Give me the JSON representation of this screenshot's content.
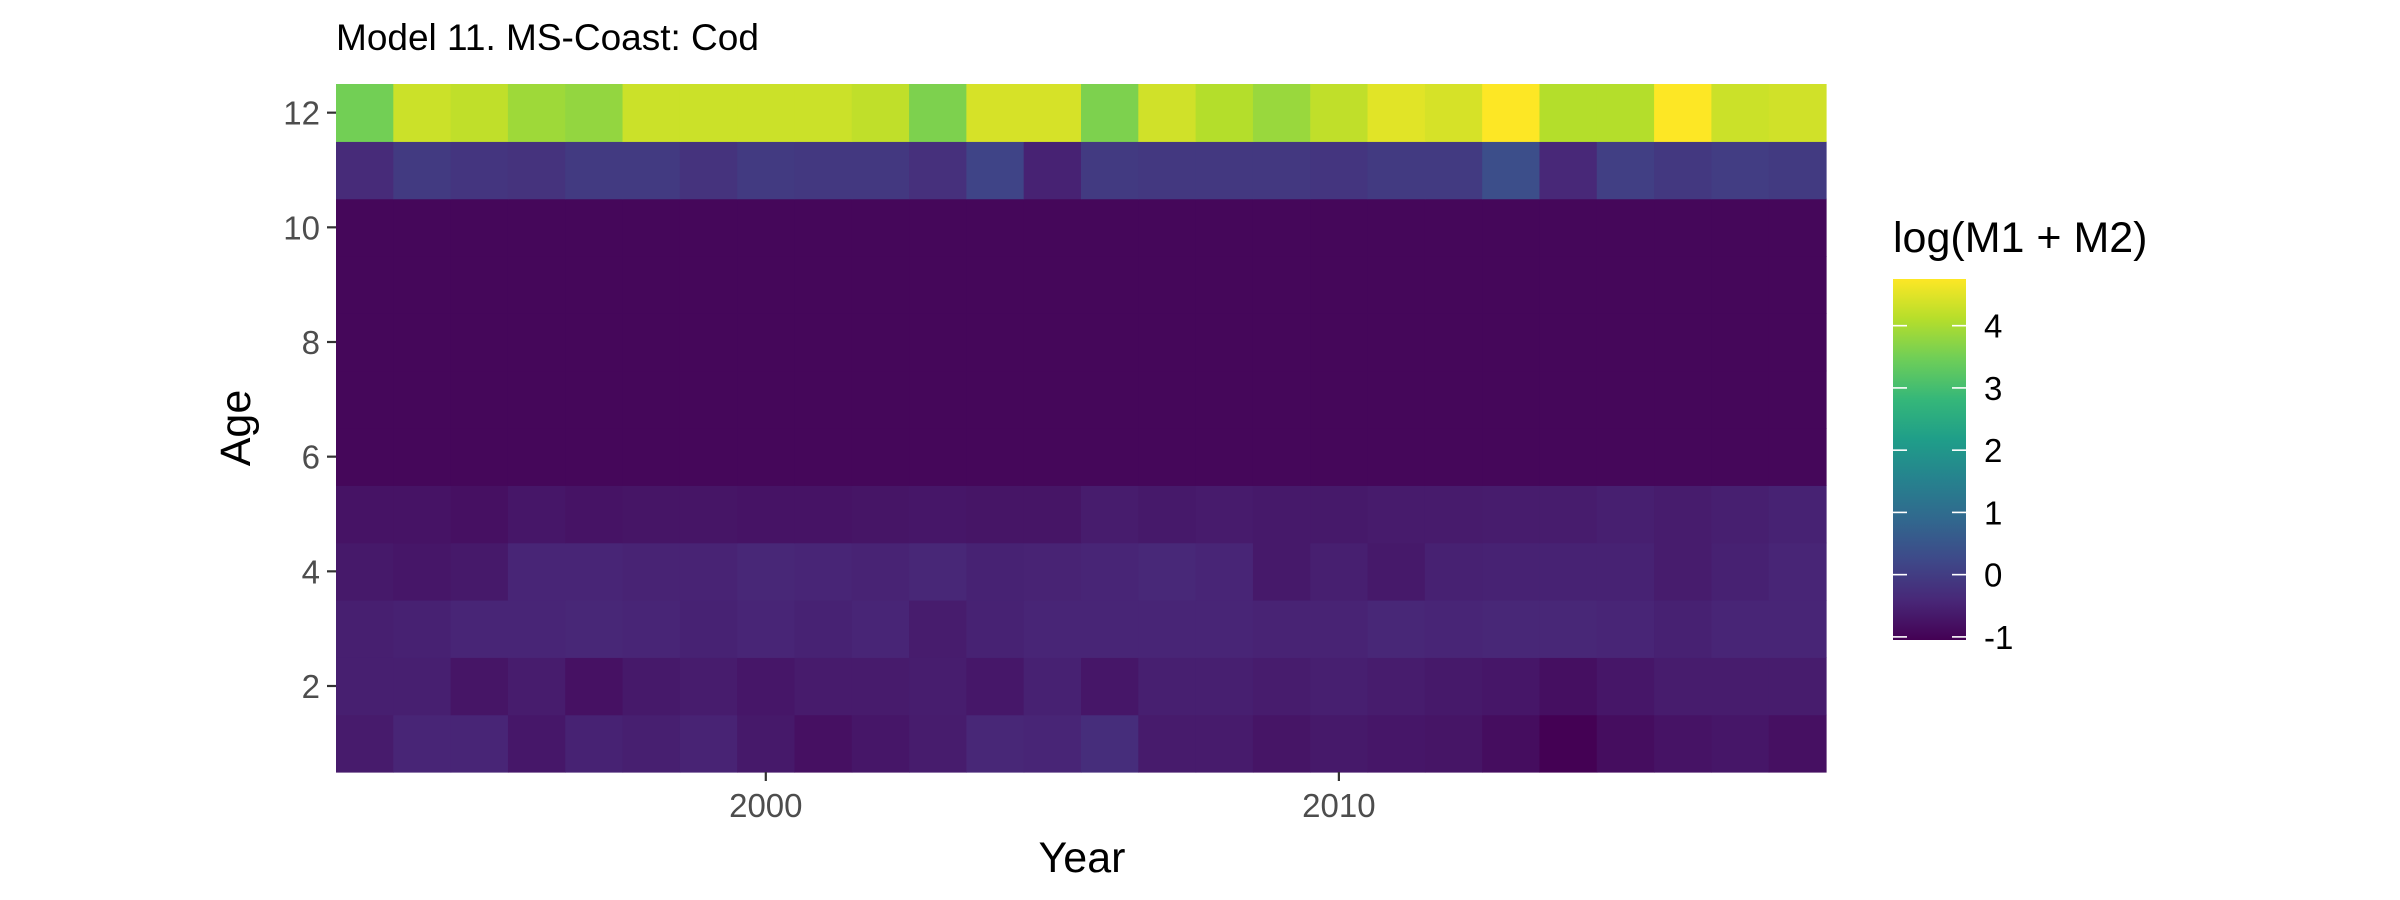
{
  "chart_data": {
    "type": "heatmap",
    "title": "Model 11. MS-Coast: Cod",
    "xlabel": "Year",
    "ylabel": "Age",
    "x": [
      1993,
      1994,
      1995,
      1996,
      1997,
      1998,
      1999,
      2000,
      2001,
      2002,
      2003,
      2004,
      2005,
      2006,
      2007,
      2008,
      2009,
      2010,
      2011,
      2012,
      2013,
      2014,
      2015,
      2016,
      2017,
      2018
    ],
    "y": [
      1,
      2,
      3,
      4,
      5,
      6,
      7,
      8,
      9,
      10,
      11,
      12
    ],
    "xlim": [
      1992.5,
      2018.5
    ],
    "ylim": [
      0.5,
      12.5
    ],
    "x_ticks": [
      {
        "value": 2000,
        "label": "2000"
      },
      {
        "value": 2010,
        "label": "2010"
      }
    ],
    "y_ticks": [
      {
        "value": 2,
        "label": "2"
      },
      {
        "value": 4,
        "label": "4"
      },
      {
        "value": 6,
        "label": "6"
      },
      {
        "value": 8,
        "label": "8"
      },
      {
        "value": 10,
        "label": "10"
      },
      {
        "value": 12,
        "label": "12"
      }
    ],
    "z": [
      [
        -0.62,
        -0.45,
        -0.45,
        -0.68,
        -0.5,
        -0.55,
        -0.48,
        -0.65,
        -0.8,
        -0.7,
        -0.6,
        -0.42,
        -0.45,
        -0.3,
        -0.62,
        -0.62,
        -0.72,
        -0.65,
        -0.7,
        -0.72,
        -0.85,
        -1.05,
        -0.85,
        -0.75,
        -0.7,
        -0.8
      ],
      [
        -0.55,
        -0.55,
        -0.72,
        -0.6,
        -0.78,
        -0.65,
        -0.6,
        -0.7,
        -0.62,
        -0.62,
        -0.58,
        -0.68,
        -0.52,
        -0.7,
        -0.55,
        -0.55,
        -0.6,
        -0.55,
        -0.6,
        -0.65,
        -0.7,
        -0.82,
        -0.7,
        -0.6,
        -0.6,
        -0.6
      ],
      [
        -0.55,
        -0.52,
        -0.45,
        -0.45,
        -0.42,
        -0.45,
        -0.5,
        -0.45,
        -0.5,
        -0.45,
        -0.6,
        -0.5,
        -0.45,
        -0.45,
        -0.45,
        -0.45,
        -0.48,
        -0.48,
        -0.42,
        -0.45,
        -0.42,
        -0.42,
        -0.45,
        -0.52,
        -0.45,
        -0.45
      ],
      [
        -0.65,
        -0.7,
        -0.65,
        -0.45,
        -0.45,
        -0.48,
        -0.48,
        -0.42,
        -0.45,
        -0.48,
        -0.42,
        -0.5,
        -0.48,
        -0.45,
        -0.4,
        -0.45,
        -0.65,
        -0.55,
        -0.65,
        -0.52,
        -0.5,
        -0.5,
        -0.5,
        -0.6,
        -0.52,
        -0.45
      ],
      [
        -0.75,
        -0.75,
        -0.8,
        -0.7,
        -0.75,
        -0.72,
        -0.72,
        -0.75,
        -0.75,
        -0.72,
        -0.7,
        -0.72,
        -0.72,
        -0.6,
        -0.65,
        -0.62,
        -0.65,
        -0.65,
        -0.62,
        -0.62,
        -0.6,
        -0.6,
        -0.55,
        -0.6,
        -0.55,
        -0.5
      ],
      [
        -0.95,
        -0.95,
        -0.95,
        -0.95,
        -0.95,
        -0.95,
        -0.95,
        -0.95,
        -0.95,
        -0.95,
        -0.95,
        -0.95,
        -0.95,
        -0.95,
        -0.95,
        -0.95,
        -0.95,
        -0.95,
        -0.95,
        -0.95,
        -0.95,
        -0.95,
        -0.95,
        -0.95,
        -0.95,
        -0.95
      ],
      [
        -0.95,
        -0.95,
        -0.95,
        -0.95,
        -0.95,
        -0.95,
        -0.95,
        -0.95,
        -0.95,
        -0.95,
        -0.95,
        -0.95,
        -0.95,
        -0.95,
        -0.95,
        -0.95,
        -0.95,
        -0.95,
        -0.95,
        -0.95,
        -0.95,
        -0.95,
        -0.95,
        -0.95,
        -0.95,
        -0.95
      ],
      [
        -0.95,
        -0.95,
        -0.95,
        -0.95,
        -0.95,
        -0.95,
        -0.95,
        -0.95,
        -0.95,
        -0.95,
        -0.95,
        -0.95,
        -0.95,
        -0.95,
        -0.95,
        -0.95,
        -0.95,
        -0.95,
        -0.95,
        -0.95,
        -0.95,
        -0.95,
        -0.95,
        -0.95,
        -0.95,
        -0.95
      ],
      [
        -0.95,
        -0.95,
        -0.95,
        -0.95,
        -0.95,
        -0.95,
        -0.95,
        -0.95,
        -0.95,
        -0.95,
        -0.95,
        -0.95,
        -0.95,
        -0.95,
        -0.95,
        -0.95,
        -0.95,
        -0.95,
        -0.95,
        -0.95,
        -0.95,
        -0.95,
        -0.95,
        -0.95,
        -0.95,
        -0.95
      ],
      [
        -0.95,
        -0.95,
        -0.95,
        -0.95,
        -0.95,
        -0.95,
        -0.95,
        -0.95,
        -0.95,
        -0.95,
        -0.95,
        -0.95,
        -0.95,
        -0.95,
        -0.95,
        -0.95,
        -0.95,
        -0.95,
        -0.95,
        -0.95,
        -0.95,
        -0.95,
        -0.95,
        -0.95,
        -0.95,
        -0.95
      ],
      [
        -0.35,
        -0.05,
        -0.15,
        -0.2,
        -0.05,
        -0.05,
        -0.2,
        -0.05,
        -0.1,
        -0.1,
        -0.25,
        0.15,
        -0.5,
        -0.05,
        -0.1,
        -0.1,
        -0.1,
        -0.15,
        -0.05,
        -0.05,
        0.35,
        -0.4,
        0.05,
        -0.1,
        0.0,
        -0.05
      ],
      [
        3.5,
        4.3,
        4.2,
        3.9,
        3.8,
        4.3,
        4.3,
        4.3,
        4.3,
        4.2,
        3.6,
        4.4,
        4.4,
        3.6,
        4.35,
        4.1,
        3.85,
        4.2,
        4.5,
        4.4,
        4.75,
        4.1,
        4.1,
        4.75,
        4.3,
        4.35
      ]
    ],
    "colorbar": {
      "title": "log(M1 + M2)",
      "min": -1.05,
      "max": 4.75,
      "ticks": [
        {
          "value": -1,
          "label": "-1"
        },
        {
          "value": 0,
          "label": "0"
        },
        {
          "value": 1,
          "label": "1"
        },
        {
          "value": 2,
          "label": "2"
        },
        {
          "value": 3,
          "label": "3"
        },
        {
          "value": 4,
          "label": "4"
        }
      ],
      "palette": [
        "#440154",
        "#482878",
        "#3e4989",
        "#31688e",
        "#26828e",
        "#1f9e89",
        "#35b779",
        "#6ece58",
        "#b5de2b",
        "#fde725"
      ]
    },
    "grid": false,
    "legend": "right"
  }
}
